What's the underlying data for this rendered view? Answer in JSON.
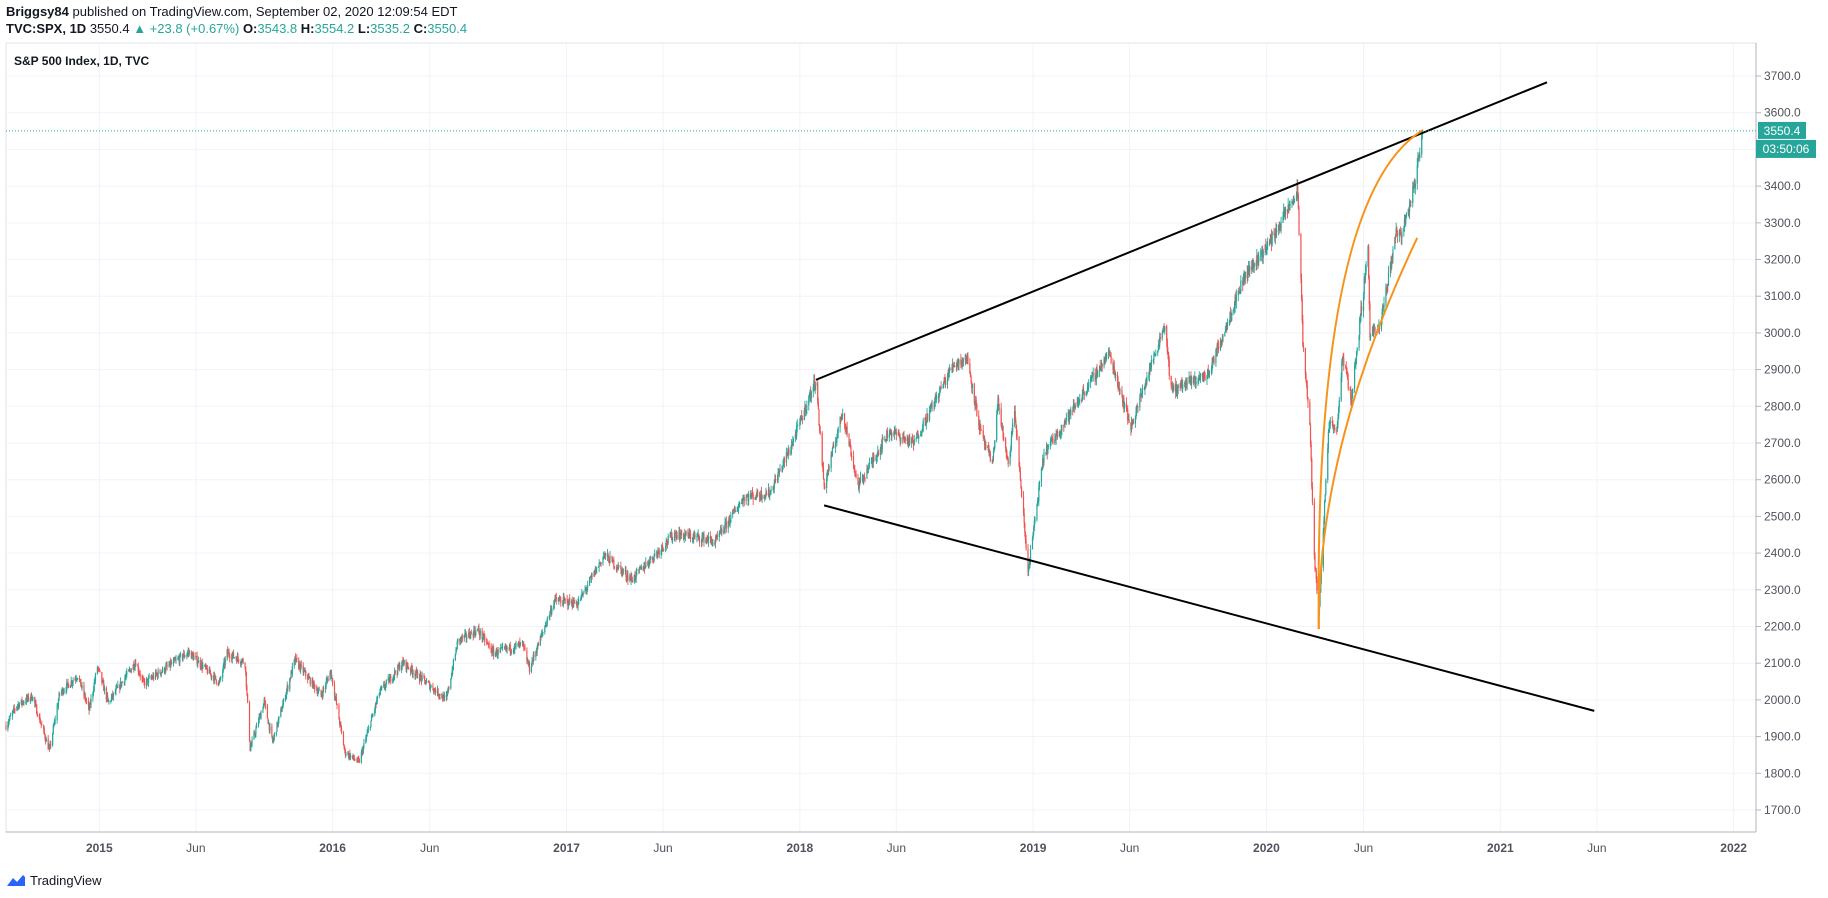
{
  "header": {
    "author": "Briggsy84",
    "published_text": "published on TradingView.com, September 02, 2020 12:09:54 EDT",
    "symbol": "TVC:SPX, 1D",
    "last": "3550.4",
    "change": "▲ +23.8 (+0.67%)",
    "open_label": "O:",
    "open": "3543.8",
    "high_label": "H:",
    "high": "3554.2",
    "low_label": "L:",
    "low": "3535.2",
    "close_label": "C:",
    "close": "3550.4"
  },
  "chart_title": "S&P 500 Index, 1D, TVC",
  "price_badge": "3550.4",
  "time_badge": "03:50:06",
  "footer_brand": "TradingView",
  "colors": {
    "up": "#26a69a",
    "down": "#ef5350",
    "trendline": "#000000",
    "arc": "#f7931a",
    "grid": "#f0f3fa",
    "axis_text": "#50535e"
  },
  "chart_data": {
    "type": "candlestick",
    "title": "S&P 500 Index, 1D, TVC",
    "x_ticks": [
      "2015",
      "Jun",
      "2016",
      "Jun",
      "2017",
      "Jun",
      "2018",
      "Jun",
      "2019",
      "Jun",
      "2020",
      "Jun",
      "2021",
      "Jun",
      "2022"
    ],
    "y_ticks": [
      1700,
      1800,
      1900,
      2000,
      2100,
      2200,
      2300,
      2400,
      2500,
      2600,
      2700,
      2800,
      2900,
      3000,
      3100,
      3200,
      3300,
      3400,
      3500,
      3600,
      3700
    ],
    "ylim": [
      1640,
      3790
    ],
    "xlim": [
      "2014-08-08",
      "2022-02-05"
    ],
    "grid": true,
    "last_price": 3550.4,
    "price_path": [
      [
        "2014-08-08",
        1930
      ],
      [
        "2014-08-25",
        1985
      ],
      [
        "2014-09-18",
        2010
      ],
      [
        "2014-10-15",
        1862
      ],
      [
        "2014-10-31",
        2018
      ],
      [
        "2014-11-28",
        2067
      ],
      [
        "2014-12-16",
        1972
      ],
      [
        "2014-12-29",
        2090
      ],
      [
        "2015-01-15",
        1992
      ],
      [
        "2015-02-27",
        2104
      ],
      [
        "2015-03-11",
        2044
      ],
      [
        "2015-05-21",
        2130
      ],
      [
        "2015-07-08",
        2046
      ],
      [
        "2015-07-20",
        2128
      ],
      [
        "2015-08-17",
        2102
      ],
      [
        "2015-08-25",
        1867
      ],
      [
        "2015-09-16",
        1995
      ],
      [
        "2015-09-29",
        1884
      ],
      [
        "2015-11-03",
        2109
      ],
      [
        "2015-12-14",
        2012
      ],
      [
        "2015-12-29",
        2078
      ],
      [
        "2016-01-20",
        1859
      ],
      [
        "2016-02-11",
        1829
      ],
      [
        "2016-03-14",
        2019
      ],
      [
        "2016-04-20",
        2102
      ],
      [
        "2016-06-27",
        2000
      ],
      [
        "2016-07-15",
        2161
      ],
      [
        "2016-08-15",
        2190
      ],
      [
        "2016-09-09",
        2127
      ],
      [
        "2016-10-24",
        2151
      ],
      [
        "2016-11-04",
        2085
      ],
      [
        "2016-12-13",
        2271
      ],
      [
        "2017-01-19",
        2263
      ],
      [
        "2017-03-01",
        2395
      ],
      [
        "2017-04-13",
        2328
      ],
      [
        "2017-06-19",
        2453
      ],
      [
        "2017-08-10",
        2438
      ],
      [
        "2017-08-21",
        2428
      ],
      [
        "2017-10-05",
        2552
      ],
      [
        "2017-11-15",
        2564
      ],
      [
        "2017-12-18",
        2690
      ],
      [
        "2018-01-26",
        2872
      ],
      [
        "2018-02-08",
        2581
      ],
      [
        "2018-03-09",
        2786
      ],
      [
        "2018-04-02",
        2582
      ],
      [
        "2018-05-21",
        2733
      ],
      [
        "2018-06-28",
        2699
      ],
      [
        "2018-08-29",
        2914
      ],
      [
        "2018-09-20",
        2930
      ],
      [
        "2018-10-11",
        2728
      ],
      [
        "2018-10-29",
        2641
      ],
      [
        "2018-11-07",
        2813
      ],
      [
        "2018-11-23",
        2633
      ],
      [
        "2018-12-03",
        2790
      ],
      [
        "2018-12-24",
        2351
      ],
      [
        "2019-01-18",
        2670
      ],
      [
        "2019-04-30",
        2945
      ],
      [
        "2019-06-03",
        2744
      ],
      [
        "2019-07-26",
        3025
      ],
      [
        "2019-08-05",
        2844
      ],
      [
        "2019-10-02",
        2887
      ],
      [
        "2019-11-27",
        3153
      ],
      [
        "2020-01-06",
        3246
      ],
      [
        "2020-02-19",
        3386
      ],
      [
        "2020-02-27",
        2978
      ],
      [
        "2020-03-09",
        2746
      ],
      [
        "2020-03-16",
        2386
      ],
      [
        "2020-03-23",
        2237
      ],
      [
        "2020-04-08",
        2749
      ],
      [
        "2020-04-21",
        2737
      ],
      [
        "2020-04-29",
        2939
      ],
      [
        "2020-05-13",
        2820
      ],
      [
        "2020-06-08",
        3232
      ],
      [
        "2020-06-11",
        3002
      ],
      [
        "2020-06-26",
        3009
      ],
      [
        "2020-07-22",
        3276
      ],
      [
        "2020-07-31",
        3271
      ],
      [
        "2020-08-18",
        3389
      ],
      [
        "2020-09-02",
        3550.4
      ]
    ],
    "annotations": [
      {
        "type": "trendline",
        "color": "#000000",
        "from": [
          "2018-01-26",
          2872
        ],
        "to": [
          "2021-03-15",
          3683
        ]
      },
      {
        "type": "trendline",
        "color": "#000000",
        "from": [
          "2018-02-08",
          2530
        ],
        "to": [
          "2021-05-28",
          1970
        ]
      },
      {
        "type": "curve",
        "color": "#f7931a",
        "from": [
          "2020-03-23",
          2193
        ],
        "via": [
          "2020-04-29",
          3123
        ],
        "to": [
          "2020-09-02",
          3553
        ]
      },
      {
        "type": "curve",
        "color": "#f7931a",
        "from": [
          "2020-03-23",
          2193
        ],
        "via": [
          "2020-04-29",
          2705
        ],
        "to": [
          "2020-08-24",
          3259
        ]
      }
    ]
  }
}
